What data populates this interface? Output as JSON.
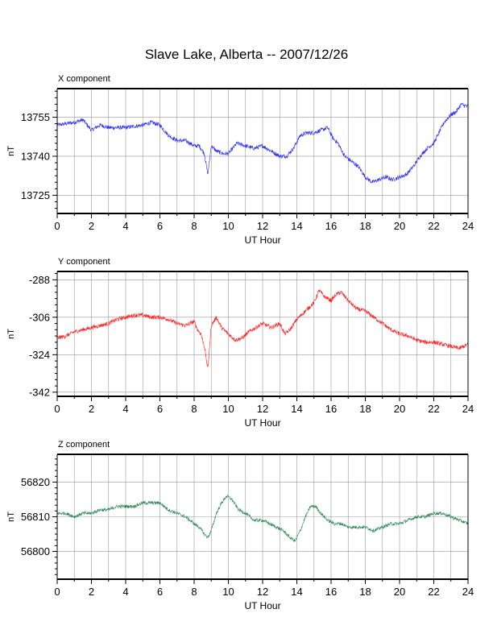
{
  "page": {
    "title": "Slave Lake, Alberta -- 2007/12/26"
  },
  "chart_data": [
    {
      "type": "line",
      "title": "X component",
      "xlabel": "UT Hour",
      "ylabel": "nT",
      "xlim": [
        0,
        24
      ],
      "ylim": [
        13718,
        13766
      ],
      "xticks": [
        0,
        2,
        4,
        6,
        8,
        10,
        12,
        14,
        16,
        18,
        20,
        22,
        24
      ],
      "yticks": [
        13725,
        13740,
        13755
      ],
      "grid": true,
      "color": "#2a2aff",
      "noise": 0.8,
      "series": [
        {
          "x": [
            0,
            1,
            1.5,
            2,
            2.5,
            3,
            4,
            5,
            5.5,
            6,
            6.5,
            7,
            7.5,
            8,
            8.3,
            8.6,
            8.8,
            9,
            9.3,
            9.7,
            10,
            10.5,
            11,
            11.5,
            12,
            12.5,
            13,
            13.4,
            13.8,
            14.2,
            14.6,
            15,
            15.4,
            15.8,
            16.1,
            16.4,
            16.8,
            17.2,
            17.6,
            18,
            18.4,
            18.8,
            19.2,
            19.6,
            20,
            20.4,
            20.8,
            21.2,
            21.6,
            22,
            22.3,
            22.6,
            23,
            23.3,
            23.6,
            24
          ],
          "values": [
            13752,
            13753,
            13754,
            13750,
            13752,
            13751,
            13751,
            13752,
            13753,
            13752,
            13748,
            13746,
            13746,
            13744,
            13744,
            13741,
            13733,
            13744,
            13742,
            13741,
            13741,
            13745,
            13744,
            13743,
            13744,
            13742,
            13740,
            13740,
            13743,
            13748,
            13749,
            13749,
            13750,
            13751,
            13747,
            13745,
            13740,
            13738,
            13736,
            13732,
            13730,
            13731,
            13732,
            13731,
            13732,
            13733,
            13736,
            13740,
            13743,
            13745,
            13749,
            13753,
            13756,
            13757,
            13760,
            13759
          ]
        }
      ]
    },
    {
      "type": "line",
      "title": "Y component",
      "xlabel": "UT Hour",
      "ylabel": "nT",
      "xlim": [
        0,
        24
      ],
      "ylim": [
        -344,
        -284
      ],
      "xticks": [
        0,
        2,
        4,
        6,
        8,
        10,
        12,
        14,
        16,
        18,
        20,
        22,
        24
      ],
      "yticks": [
        -288,
        -306,
        -324,
        -342
      ],
      "grid": true,
      "color": "#ff2020",
      "noise": 1.0,
      "series": [
        {
          "x": [
            0,
            0.5,
            1,
            1.5,
            2,
            2.5,
            3,
            3.5,
            4,
            4.5,
            5,
            5.5,
            6,
            6.5,
            7,
            7.5,
            8,
            8.2,
            8.4,
            8.6,
            8.8,
            9.0,
            9.3,
            9.6,
            10,
            10.4,
            10.8,
            11.2,
            11.6,
            12,
            12.5,
            13,
            13.3,
            13.6,
            14,
            14.5,
            15,
            15.3,
            15.6,
            16,
            16.3,
            16.6,
            17,
            17.5,
            18,
            18.5,
            19,
            19.5,
            20,
            20.5,
            21,
            21.5,
            22,
            22.5,
            23,
            23.5,
            24
          ],
          "values": [
            -316,
            -315,
            -313,
            -312,
            -311,
            -310,
            -309,
            -307,
            -306,
            -305,
            -305,
            -306,
            -306,
            -307,
            -309,
            -310,
            -308,
            -312,
            -314,
            -320,
            -331,
            -310,
            -306,
            -311,
            -314,
            -317,
            -316,
            -313,
            -311,
            -309,
            -311,
            -309,
            -314,
            -312,
            -307,
            -303,
            -299,
            -293,
            -296,
            -298,
            -295,
            -294,
            -298,
            -302,
            -303,
            -306,
            -309,
            -312,
            -314,
            -315,
            -317,
            -318,
            -318,
            -319,
            -320,
            -321,
            -319
          ]
        }
      ]
    },
    {
      "type": "line",
      "title": "Z component",
      "xlabel": "UT Hour",
      "ylabel": "nT",
      "xlim": [
        0,
        24
      ],
      "ylim": [
        56792,
        56828
      ],
      "xticks": [
        0,
        2,
        4,
        6,
        8,
        10,
        12,
        14,
        16,
        18,
        20,
        22,
        24
      ],
      "yticks": [
        56800,
        56810,
        56820
      ],
      "grid": true,
      "color": "#2e8b57",
      "noise": 0.5,
      "series": [
        {
          "x": [
            0,
            0.5,
            1,
            1.5,
            2,
            2.5,
            3,
            3.5,
            4,
            4.5,
            5,
            5.5,
            6,
            6.5,
            7,
            7.5,
            8,
            8.3,
            8.6,
            8.8,
            9.0,
            9.3,
            9.6,
            9.9,
            10.2,
            10.6,
            11,
            11.5,
            12,
            12.4,
            12.8,
            13.2,
            13.6,
            13.9,
            14.2,
            14.5,
            14.8,
            15.1,
            15.4,
            15.8,
            16.2,
            16.6,
            17,
            17.5,
            18,
            18.5,
            19,
            19.5,
            20,
            20.5,
            21,
            21.5,
            22,
            22.5,
            23,
            23.5,
            24
          ],
          "values": [
            56811,
            56811,
            56810,
            56811,
            56811,
            56812,
            56812,
            56813,
            56813,
            56813,
            56814,
            56814,
            56814,
            56812,
            56811,
            56810,
            56808,
            56807,
            56805,
            56804,
            56806,
            56811,
            56814,
            56816,
            56815,
            56812,
            56811,
            56809,
            56809,
            56808,
            56807,
            56806,
            56804,
            56803,
            56806,
            56810,
            56813,
            56813,
            56811,
            56809,
            56808,
            56808,
            56807,
            56807,
            56807,
            56806,
            56807,
            56808,
            56808,
            56809,
            56810,
            56810,
            56811,
            56811,
            56810,
            56809,
            56808
          ]
        }
      ]
    }
  ]
}
